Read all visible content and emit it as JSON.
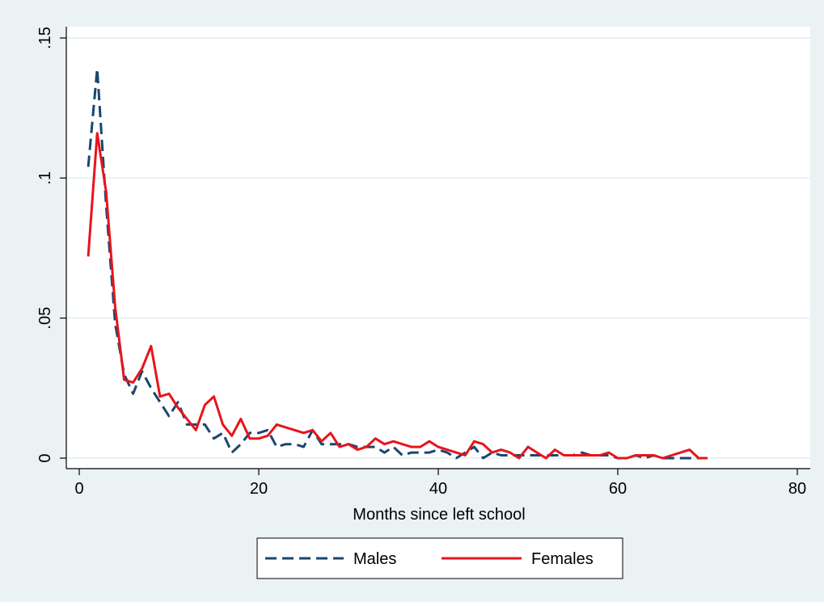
{
  "colors": {
    "outer_background": "#eaf2f3",
    "plot_background": "#ffffff",
    "grid": "#eaf2f3",
    "males": "#1a476f",
    "females": "#e8141b"
  },
  "chart_data": {
    "type": "line",
    "title": "",
    "xlabel": "Months since left school",
    "ylabel": "",
    "xlim": [
      0,
      80
    ],
    "ylim": [
      0,
      0.15
    ],
    "xticks": [
      0,
      20,
      40,
      60,
      80
    ],
    "xtick_labels": [
      "0",
      "20",
      "40",
      "60",
      "80"
    ],
    "yticks": [
      0,
      0.05,
      0.1,
      0.15
    ],
    "ytick_labels": [
      "0",
      ".05",
      ".1",
      ".15"
    ],
    "grid": true,
    "legend_position": "bottom",
    "series": [
      {
        "name": "Males",
        "style": "dashed",
        "color": "#1a476f",
        "x": [
          1,
          2,
          3,
          4,
          5,
          6,
          7,
          8,
          9,
          10,
          11,
          12,
          13,
          14,
          15,
          16,
          17,
          18,
          19,
          20,
          21,
          22,
          23,
          24,
          25,
          26,
          27,
          28,
          29,
          30,
          31,
          32,
          33,
          34,
          35,
          36,
          37,
          38,
          39,
          40,
          41,
          42,
          43,
          44,
          45,
          46,
          47,
          48,
          49,
          50,
          51,
          52,
          53,
          54,
          55,
          56,
          57,
          58,
          59,
          60,
          61,
          62,
          63,
          64,
          65,
          66,
          67,
          68,
          69,
          70
        ],
        "y": [
          0.104,
          0.139,
          0.09,
          0.048,
          0.03,
          0.023,
          0.031,
          0.025,
          0.02,
          0.015,
          0.02,
          0.012,
          0.012,
          0.012,
          0.007,
          0.009,
          0.002,
          0.005,
          0.009,
          0.009,
          0.01,
          0.004,
          0.005,
          0.005,
          0.004,
          0.01,
          0.005,
          0.005,
          0.005,
          0.005,
          0.004,
          0.004,
          0.004,
          0.002,
          0.004,
          0.001,
          0.002,
          0.002,
          0.002,
          0.003,
          0.002,
          0.0,
          0.002,
          0.004,
          0.0,
          0.002,
          0.001,
          0.001,
          0.001,
          0.001,
          0.001,
          0.001,
          0.001,
          0.001,
          0.001,
          0.002,
          0.001,
          0.001,
          0.001,
          0.0,
          0.0,
          0.001,
          0.0,
          0.001,
          0.0,
          0.0,
          0.0,
          0.0,
          0.0,
          0.0
        ]
      },
      {
        "name": "Females",
        "style": "solid",
        "color": "#e8141b",
        "x": [
          1,
          2,
          3,
          4,
          5,
          6,
          7,
          8,
          9,
          10,
          11,
          12,
          13,
          14,
          15,
          16,
          17,
          18,
          19,
          20,
          21,
          22,
          23,
          24,
          25,
          26,
          27,
          28,
          29,
          30,
          31,
          32,
          33,
          34,
          35,
          36,
          37,
          38,
          39,
          40,
          41,
          42,
          43,
          44,
          45,
          46,
          47,
          48,
          49,
          50,
          51,
          52,
          53,
          54,
          55,
          56,
          57,
          58,
          59,
          60,
          61,
          62,
          63,
          64,
          65,
          66,
          67,
          68,
          69,
          70
        ],
        "y": [
          0.072,
          0.116,
          0.095,
          0.054,
          0.028,
          0.027,
          0.032,
          0.04,
          0.022,
          0.023,
          0.018,
          0.014,
          0.01,
          0.019,
          0.022,
          0.012,
          0.008,
          0.014,
          0.007,
          0.007,
          0.008,
          0.012,
          0.011,
          0.01,
          0.009,
          0.01,
          0.006,
          0.009,
          0.004,
          0.005,
          0.003,
          0.004,
          0.007,
          0.005,
          0.006,
          0.005,
          0.004,
          0.004,
          0.006,
          0.004,
          0.003,
          0.002,
          0.001,
          0.006,
          0.005,
          0.002,
          0.003,
          0.002,
          0.0,
          0.004,
          0.002,
          0.0,
          0.003,
          0.001,
          0.001,
          0.001,
          0.001,
          0.001,
          0.002,
          0.0,
          0.0,
          0.001,
          0.001,
          0.001,
          0.0,
          0.001,
          0.002,
          0.003,
          0.0,
          0.0
        ]
      }
    ]
  }
}
